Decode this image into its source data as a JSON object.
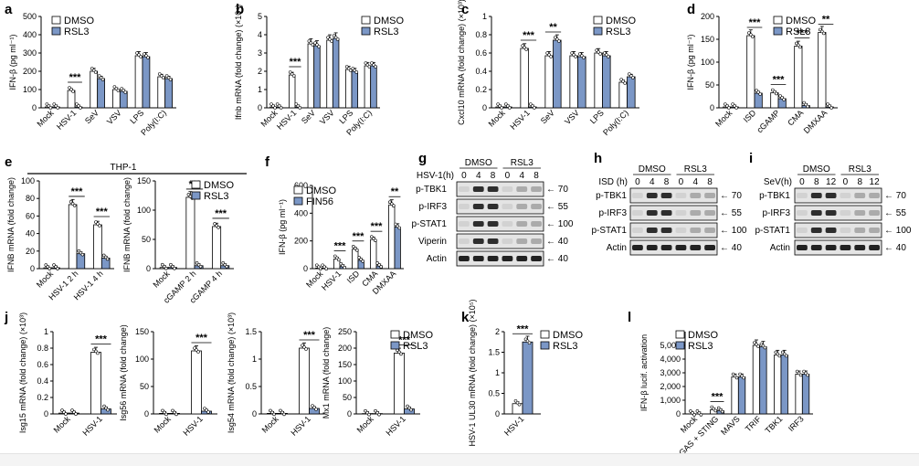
{
  "figure": {
    "colors": {
      "dmso": "#ffffff",
      "rsl3": "#7b97c6",
      "fin56": "#7b97c6",
      "edge": "#000000"
    },
    "legend_dmso": "DMSO",
    "legend_rsl3": "RSL3",
    "legend_fin56": "FIN56",
    "thp1_label": "THP-1",
    "sig": "***",
    "sig2": "**"
  },
  "chart_data": [
    {
      "id": "a",
      "type": "bar",
      "panel_label": "a",
      "ylabel": "IFN-β (pg ml⁻¹)",
      "ylim": [
        0,
        500
      ],
      "yticks": [
        0,
        100,
        200,
        300,
        400,
        500
      ],
      "categories": [
        "Mock",
        "HSV-1",
        "SeV",
        "VSV",
        "LPS",
        "Poly(I:C)"
      ],
      "series": [
        {
          "name": "DMSO",
          "values": [
            5,
            95,
            200,
            100,
            285,
            170
          ]
        },
        {
          "name": "RSL3",
          "values": [
            5,
            5,
            160,
            90,
            280,
            160
          ]
        }
      ],
      "annotations": [
        {
          "category": 1,
          "text": "***"
        }
      ]
    },
    {
      "id": "b",
      "type": "bar",
      "panel_label": "b",
      "ylabel": "Ifnb mRNA (fold change) (×10⁴)",
      "ylim": [
        0,
        5
      ],
      "yticks": [
        0,
        1,
        2,
        3,
        4,
        5
      ],
      "categories": [
        "Mock",
        "HSV-1",
        "SeV",
        "VSV",
        "LPS",
        "Poly(I:C)"
      ],
      "series": [
        {
          "name": "DMSO",
          "values": [
            0.05,
            1.8,
            3.5,
            3.7,
            2.1,
            2.3
          ]
        },
        {
          "name": "RSL3",
          "values": [
            0.05,
            0.05,
            3.4,
            3.8,
            2.0,
            2.3
          ]
        }
      ],
      "annotations": [
        {
          "category": 1,
          "text": "***"
        }
      ]
    },
    {
      "id": "c",
      "type": "bar",
      "panel_label": "c",
      "ylabel": "Cxcl10 mRNA (fold change) (×10³)",
      "ylim": [
        0,
        1
      ],
      "yticks": [
        0,
        0.2,
        0.4,
        0.6,
        0.8,
        1.0
      ],
      "categories": [
        "Mock",
        "HSV-1",
        "SeV",
        "VSV",
        "LPS",
        "Poly(I:C)"
      ],
      "series": [
        {
          "name": "DMSO",
          "values": [
            0.01,
            0.65,
            0.57,
            0.57,
            0.6,
            0.28
          ]
        },
        {
          "name": "RSL3",
          "values": [
            0.01,
            0.01,
            0.74,
            0.56,
            0.57,
            0.34
          ]
        }
      ],
      "annotations": [
        {
          "category": 1,
          "text": "***"
        },
        {
          "category": 2,
          "text": "**"
        }
      ]
    },
    {
      "id": "d",
      "type": "bar",
      "panel_label": "d",
      "ylabel": "IFN-β (pg ml⁻¹)",
      "ylim": [
        0,
        200
      ],
      "yticks": [
        0,
        50,
        100,
        150,
        200
      ],
      "categories": [
        "Mock",
        "ISD",
        "cGAMP",
        "CMA",
        "DMXAA"
      ],
      "series": [
        {
          "name": "DMSO",
          "values": [
            2,
            158,
            33,
            135,
            165
          ]
        },
        {
          "name": "RSL3",
          "values": [
            2,
            32,
            20,
            5,
            2
          ]
        }
      ],
      "annotations": [
        {
          "category": 1,
          "text": "***"
        },
        {
          "category": 2,
          "text": "***"
        },
        {
          "category": 3,
          "text": "***"
        },
        {
          "category": 4,
          "text": "**"
        }
      ]
    },
    {
      "id": "e1",
      "type": "bar",
      "panel_label": "e",
      "ylabel": "IFNB mRNA (fold change)",
      "ylim": [
        0,
        100
      ],
      "yticks": [
        0,
        20,
        40,
        60,
        80,
        100
      ],
      "categories": [
        "Mock",
        "HSV-1 2 h",
        "HSV-1 4 h"
      ],
      "series": [
        {
          "name": "DMSO",
          "values": [
            1,
            73,
            50
          ]
        },
        {
          "name": "RSL3",
          "values": [
            1,
            17,
            12
          ]
        }
      ],
      "annotations": [
        {
          "category": 1,
          "text": "***"
        },
        {
          "category": 2,
          "text": "***"
        }
      ]
    },
    {
      "id": "e2",
      "type": "bar",
      "panel_label": "",
      "ylabel": "IFNB mRNA (fold change)",
      "ylim": [
        0,
        150
      ],
      "yticks": [
        0,
        50,
        100,
        150
      ],
      "categories": [
        "Mock",
        "cGAMP 2 h",
        "cGAMP 4 h"
      ],
      "series": [
        {
          "name": "DMSO",
          "values": [
            2,
            122,
            72
          ]
        },
        {
          "name": "RSL3",
          "values": [
            2,
            5,
            5
          ]
        }
      ],
      "annotations": [
        {
          "category": 1,
          "text": "***"
        },
        {
          "category": 2,
          "text": "***"
        }
      ]
    },
    {
      "id": "f",
      "type": "bar",
      "panel_label": "f",
      "ylabel": "IFN-β (pg ml⁻¹)",
      "ylim": [
        0,
        600
      ],
      "yticks": [
        0,
        200,
        400,
        600
      ],
      "categories": [
        "Mock",
        "HSV-1",
        "ISD",
        "CMA",
        "DMXAA"
      ],
      "series": [
        {
          "name": "DMSO",
          "values": [
            5,
            70,
            140,
            210,
            460
          ]
        },
        {
          "name": "FIN56",
          "values": [
            5,
            15,
            60,
            20,
            300
          ]
        }
      ],
      "annotations": [
        {
          "category": 1,
          "text": "***"
        },
        {
          "category": 2,
          "text": "***"
        },
        {
          "category": 3,
          "text": "***"
        },
        {
          "category": 4,
          "text": "**"
        }
      ]
    },
    {
      "id": "j1",
      "type": "bar",
      "panel_label": "j",
      "ylabel": "Isg15 mRNA (fold change) (×10³)",
      "ylim": [
        0,
        1
      ],
      "yticks": [
        0,
        0.2,
        0.4,
        0.6,
        0.8,
        1.0
      ],
      "categories": [
        "Mock",
        "HSV-1"
      ],
      "series": [
        {
          "name": "DMSO",
          "values": [
            0.01,
            0.75
          ]
        },
        {
          "name": "RSL3",
          "values": [
            0.01,
            0.06
          ]
        }
      ],
      "annotations": [
        {
          "category": 1,
          "text": "***"
        }
      ]
    },
    {
      "id": "j2",
      "type": "bar",
      "panel_label": "",
      "ylabel": "Isg56 mRNA (fold change)",
      "ylim": [
        0,
        150
      ],
      "yticks": [
        0,
        50,
        100,
        150
      ],
      "categories": [
        "Mock",
        "HSV-1"
      ],
      "series": [
        {
          "name": "DMSO",
          "values": [
            1,
            115
          ]
        },
        {
          "name": "RSL3",
          "values": [
            1,
            5
          ]
        }
      ],
      "annotations": [
        {
          "category": 1,
          "text": "***"
        }
      ]
    },
    {
      "id": "j3",
      "type": "bar",
      "panel_label": "",
      "ylabel": "Isg54 mRNA (fold change) (×10³)",
      "ylim": [
        0,
        1.5
      ],
      "yticks": [
        0,
        0.5,
        1.0,
        1.5
      ],
      "categories": [
        "Mock",
        "HSV-1"
      ],
      "series": [
        {
          "name": "DMSO",
          "values": [
            0.01,
            1.2
          ]
        },
        {
          "name": "RSL3",
          "values": [
            0.01,
            0.1
          ]
        }
      ],
      "annotations": [
        {
          "category": 1,
          "text": "***"
        }
      ]
    },
    {
      "id": "j4",
      "type": "bar",
      "panel_label": "",
      "ylabel": "Mx1 mRNA (fold change)",
      "ylim": [
        0,
        250
      ],
      "yticks": [
        0,
        50,
        100,
        150,
        200,
        250
      ],
      "categories": [
        "Mock",
        "HSV-1"
      ],
      "series": [
        {
          "name": "DMSO",
          "values": [
            1,
            185
          ]
        },
        {
          "name": "RSL3",
          "values": [
            1,
            15
          ]
        }
      ],
      "annotations": [
        {
          "category": 1,
          "text": "***"
        }
      ]
    },
    {
      "id": "k",
      "type": "bar",
      "panel_label": "k",
      "ylabel": "HSV-1 UL30 mRNA (fold change) (×10⁵)",
      "ylim": [
        0,
        2
      ],
      "yticks": [
        0,
        0.5,
        1.0,
        1.5,
        2.0
      ],
      "categories": [
        "HSV-1"
      ],
      "series": [
        {
          "name": "DMSO",
          "values": [
            0.25
          ]
        },
        {
          "name": "RSL3",
          "values": [
            1.75
          ]
        }
      ],
      "annotations": [
        {
          "category": 0,
          "text": "***"
        }
      ]
    },
    {
      "id": "l",
      "type": "bar",
      "panel_label": "l",
      "ylabel": "IFN-β lucif. activation",
      "ylim": [
        0,
        6000
      ],
      "yticks": [
        0,
        1000,
        2000,
        3000,
        4000,
        5000
      ],
      "ytick_labels": [
        "0",
        "1,000",
        "2,000",
        "3,000",
        "4,000",
        "5,000"
      ],
      "categories": [
        "Mock",
        "GAS + STING",
        "MAVS",
        "TRIF",
        "TBK1",
        "IRF3"
      ],
      "series": [
        {
          "name": "DMSO",
          "values": [
            5,
            300,
            2700,
            5000,
            4300,
            2900
          ]
        },
        {
          "name": "RSL3",
          "values": [
            5,
            230,
            2700,
            4900,
            4300,
            2900
          ]
        }
      ],
      "annotations": [
        {
          "category": 1,
          "text": "***"
        }
      ]
    }
  ],
  "blots": [
    {
      "id": "g",
      "panel_label": "g",
      "header": "HSV-1(h)",
      "groups": [
        "DMSO",
        "RSL3"
      ],
      "lanes": [
        "0",
        "4",
        "8",
        "0",
        "4",
        "8"
      ],
      "rows": [
        "p-TBK1",
        "p-IRF3",
        "p-STAT1",
        "Viperin",
        "Actin"
      ],
      "markers": [
        "70",
        "55",
        "100",
        "40",
        "40"
      ]
    },
    {
      "id": "h",
      "panel_label": "h",
      "header": "ISD (h)",
      "groups": [
        "DMSO",
        "RSL3"
      ],
      "lanes": [
        "0",
        "4",
        "8",
        "0",
        "4",
        "8"
      ],
      "rows": [
        "p-TBK1",
        "p-IRF3",
        "p-STAT1",
        "Actin"
      ],
      "markers": [
        "70",
        "55",
        "100",
        "40"
      ]
    },
    {
      "id": "i",
      "panel_label": "i",
      "header": "SeV(h)",
      "groups": [
        "DMSO",
        "RSL3"
      ],
      "lanes": [
        "0",
        "8",
        "12",
        "0",
        "8",
        "12"
      ],
      "rows": [
        "p-TBK1",
        "p-IRF3",
        "p-STAT1",
        "Actin"
      ],
      "markers": [
        "70",
        "55",
        "100",
        "40"
      ]
    }
  ]
}
